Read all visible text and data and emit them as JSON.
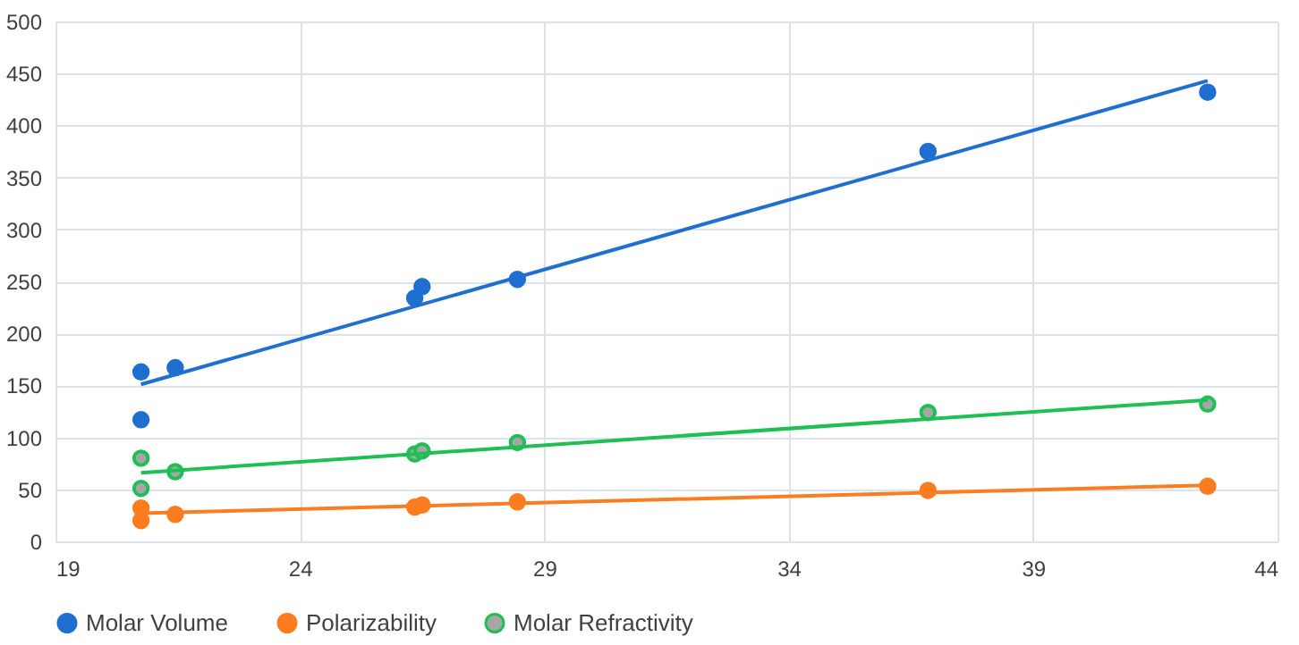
{
  "chart_data": {
    "type": "scatter",
    "xlim": [
      19,
      44
    ],
    "xticks": [
      19,
      24,
      29,
      34,
      39,
      44
    ],
    "ylim": [
      0,
      500
    ],
    "yticks": [
      0,
      50,
      100,
      150,
      200,
      250,
      300,
      350,
      400,
      450,
      500
    ],
    "grid": true,
    "legend": "bottom",
    "marker": "circle",
    "series": [
      {
        "name": "Molar Volume",
        "color": "#1f6fd0",
        "x": [
          20.75,
          20.75,
          21.45,
          26.35,
          26.5,
          28.45,
          36.85,
          42.57
        ],
        "values": [
          163,
          117,
          167,
          234,
          245,
          252,
          375,
          432
        ]
      },
      {
        "name": "Polarizability",
        "color": "#fb7d1f",
        "x": [
          20.75,
          20.75,
          21.45,
          26.35,
          26.5,
          28.45,
          36.85,
          42.57
        ],
        "values": [
          32,
          20,
          26,
          33,
          35,
          38,
          49,
          53
        ]
      },
      {
        "name": "Molar Refractivity",
        "color": "#1fbf55",
        "x": [
          20.75,
          20.75,
          21.45,
          26.35,
          26.5,
          28.45,
          36.85,
          42.57
        ],
        "values": [
          80,
          51,
          67,
          84,
          87,
          95,
          124,
          132
        ]
      },
      {
        "type": "line",
        "marker": "none",
        "line_style": "solid",
        "color": "#1f6fd0",
        "x": [
          20.75,
          42.57
        ],
        "values": [
          151,
          443
        ]
      },
      {
        "type": "line",
        "marker": "none",
        "line_style": "solid",
        "color": "#fb7d1f",
        "x": [
          20.75,
          42.57
        ],
        "values": [
          27,
          54
        ]
      },
      {
        "type": "line",
        "marker": "none",
        "line_style": "solid",
        "color": "#1fbf55",
        "x": [
          20.75,
          42.57
        ],
        "values": [
          66,
          136
        ]
      }
    ]
  }
}
